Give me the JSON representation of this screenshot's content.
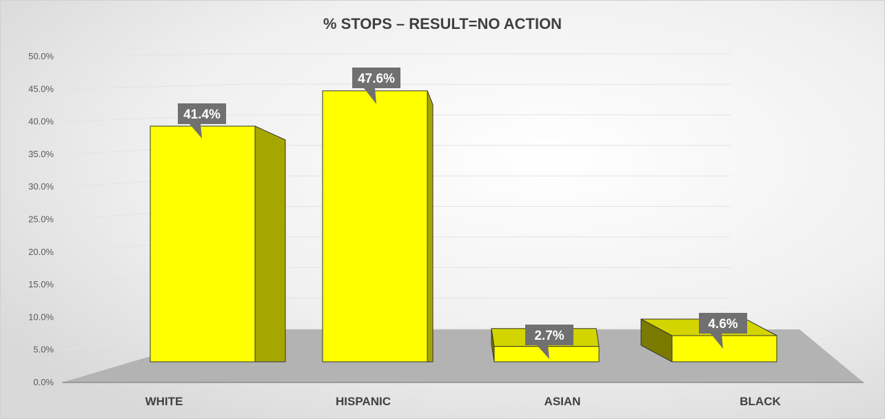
{
  "chart_data": {
    "type": "bar",
    "title": "% STOPS – RESULT=NO ACTION",
    "categories": [
      "WHITE",
      "HISPANIC",
      "ASIAN",
      "BLACK"
    ],
    "values": [
      41.4,
      47.6,
      2.7,
      4.6
    ],
    "data_labels": [
      "41.4%",
      "47.6%",
      "2.7%",
      "4.6%"
    ],
    "y_ticks": [
      "0.0%",
      "5.0%",
      "10.0%",
      "15.0%",
      "20.0%",
      "25.0%",
      "30.0%",
      "35.0%",
      "40.0%",
      "45.0%",
      "50.0%"
    ],
    "ylim": [
      0,
      50
    ],
    "xlabel": "",
    "ylabel": "",
    "grid": true,
    "legend": "none",
    "style": "3d-column",
    "colors": {
      "bar_front": "#ffff00",
      "bar_side": "#a6a600",
      "bar_top": "#d4d400",
      "floor": "#b3b3b3",
      "label_box": "#707070",
      "background": "#f2f2f2"
    }
  }
}
